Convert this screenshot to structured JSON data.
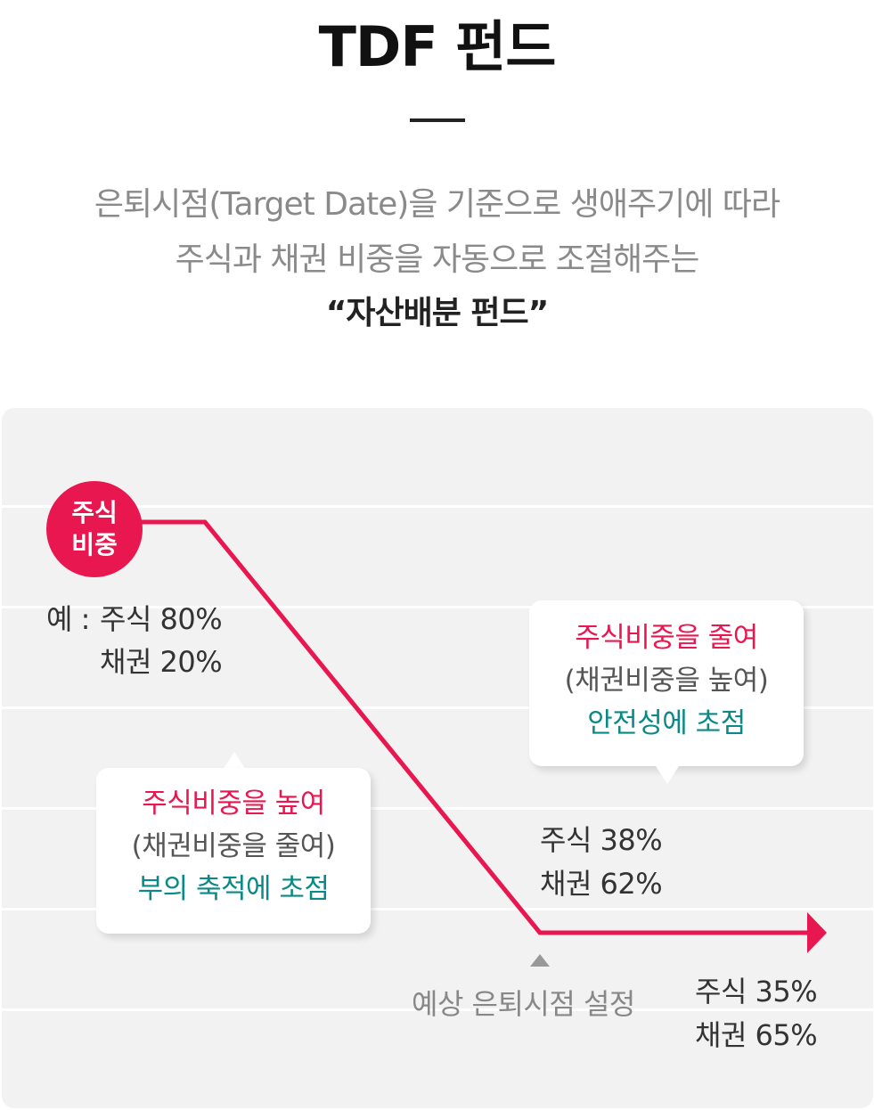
{
  "title": "TDF 펀드",
  "subtitle": {
    "line1": "은퇴시점(Target Date)을 기준으로 생애주기에 따라",
    "line2": "주식과 채권 비중을 자동으로 조절해주는",
    "line3": "“자산배분 펀드”"
  },
  "diagram": {
    "badge": {
      "line1": "주식",
      "line2": "비중"
    },
    "start": {
      "prefix": "예 :",
      "stock": "주식 80%",
      "bond": "채권 20%"
    },
    "mid": {
      "stock": "주식 38%",
      "bond": "채권 62%"
    },
    "end": {
      "stock": "주식 35%",
      "bond": "채권 65%"
    },
    "target_label": "예상 은퇴시점 설정",
    "bubble_left": {
      "line1": "주식비중을 높여",
      "line2": "(채권비중을 줄여)",
      "line3": "부의 축적에 초점"
    },
    "bubble_right": {
      "line1": "주식비중을 줄여",
      "line2": "(채권비중을 높여)",
      "line3": "안전성에 초점"
    },
    "colors": {
      "accent": "#e8174f",
      "teal": "#0a8a86",
      "panel": "#f2f2f2",
      "marker": "#999999"
    }
  }
}
